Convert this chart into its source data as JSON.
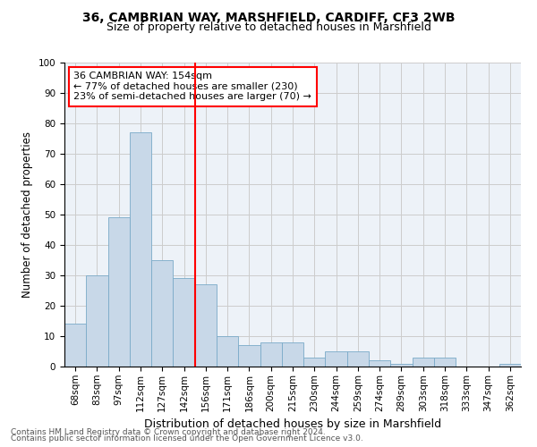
{
  "title_line1": "36, CAMBRIAN WAY, MARSHFIELD, CARDIFF, CF3 2WB",
  "title_line2": "Size of property relative to detached houses in Marshfield",
  "xlabel": "Distribution of detached houses by size in Marshfield",
  "ylabel": "Number of detached properties",
  "bar_labels": [
    "68sqm",
    "83sqm",
    "97sqm",
    "112sqm",
    "127sqm",
    "142sqm",
    "156sqm",
    "171sqm",
    "186sqm",
    "200sqm",
    "215sqm",
    "230sqm",
    "244sqm",
    "259sqm",
    "274sqm",
    "289sqm",
    "303sqm",
    "318sqm",
    "333sqm",
    "347sqm",
    "362sqm"
  ],
  "bar_values": [
    14,
    30,
    49,
    77,
    35,
    29,
    27,
    10,
    7,
    8,
    8,
    3,
    5,
    5,
    2,
    1,
    3,
    3,
    0,
    0,
    1
  ],
  "bar_color": "#c8d8e8",
  "bar_edge_color": "#7aaac8",
  "vline_color": "red",
  "annotation_text": "36 CAMBRIAN WAY: 154sqm\n← 77% of detached houses are smaller (230)\n23% of semi-detached houses are larger (70) →",
  "annotation_box_color": "white",
  "annotation_box_edge_color": "red",
  "ylim": [
    0,
    100
  ],
  "yticks": [
    0,
    10,
    20,
    30,
    40,
    50,
    60,
    70,
    80,
    90,
    100
  ],
  "grid_color": "#cccccc",
  "background_color": "#edf2f8",
  "footer_line1": "Contains HM Land Registry data © Crown copyright and database right 2024.",
  "footer_line2": "Contains public sector information licensed under the Open Government Licence v3.0.",
  "title_fontsize": 10,
  "subtitle_fontsize": 9,
  "xlabel_fontsize": 9,
  "ylabel_fontsize": 8.5,
  "tick_fontsize": 7.5,
  "annotation_fontsize": 8,
  "footer_fontsize": 6.5
}
